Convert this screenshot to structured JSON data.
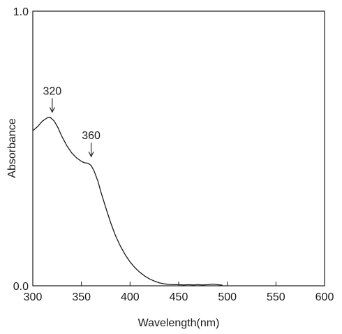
{
  "chart_data": {
    "type": "line",
    "title": "",
    "xlabel": "Wavelength(nm)",
    "ylabel": "Absorbance",
    "xlim": [
      300,
      600
    ],
    "ylim": [
      0.0,
      1.0
    ],
    "xticks": [
      300,
      350,
      400,
      450,
      500,
      550,
      600
    ],
    "xtick_labels": [
      "300",
      "350",
      "400",
      "450",
      "500",
      "550",
      "600"
    ],
    "yticks": [
      0.0,
      1.0
    ],
    "ytick_labels": [
      "0.0",
      "1.0"
    ],
    "grid": false,
    "legend": "none",
    "series": [
      {
        "x": [
          300,
          305,
          310,
          315,
          318,
          322,
          326,
          330,
          335,
          340,
          345,
          350,
          353,
          357,
          360,
          363,
          367,
          370,
          375,
          380,
          385,
          390,
          395,
          400,
          405,
          410,
          415,
          420,
          425,
          430,
          435,
          440,
          445,
          450,
          455,
          460,
          465,
          470,
          475,
          480,
          485,
          490,
          495
        ],
        "y": [
          0.565,
          0.58,
          0.6,
          0.612,
          0.613,
          0.6,
          0.575,
          0.543,
          0.51,
          0.484,
          0.466,
          0.453,
          0.448,
          0.446,
          0.438,
          0.418,
          0.38,
          0.342,
          0.285,
          0.23,
          0.183,
          0.145,
          0.113,
          0.087,
          0.066,
          0.049,
          0.036,
          0.025,
          0.017,
          0.011,
          0.007,
          0.005,
          0.004,
          0.004,
          0.003,
          0.004,
          0.003,
          0.004,
          0.003,
          0.004,
          0.006,
          0.004,
          0.002
        ],
        "color": "#1a1a1a"
      }
    ],
    "annotations": [
      {
        "text": "320",
        "x": 320,
        "y": 0.612
      },
      {
        "text": "360",
        "x": 360,
        "y": 0.45
      }
    ]
  }
}
